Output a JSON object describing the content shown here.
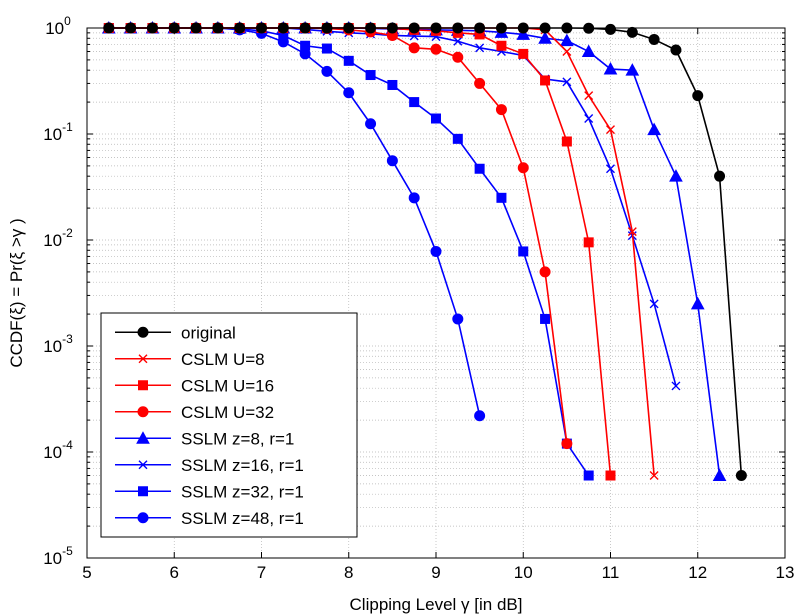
{
  "chart_data": {
    "type": "line",
    "title": "",
    "xlabel": "Clipping Level γ [in dB]",
    "ylabel": "CCDF(ξ) = Pr(ξ >γ )",
    "xlim": [
      5,
      13
    ],
    "ylim": [
      1e-05,
      1
    ],
    "yscale": "log",
    "grid": true,
    "legend_position": "bottom-left",
    "x_ticks": [
      "5",
      "6",
      "7",
      "8",
      "9",
      "10",
      "11",
      "12",
      "13"
    ],
    "y_ticks": [
      {
        "base": "10",
        "exp": "-5"
      },
      {
        "base": "10",
        "exp": "-4"
      },
      {
        "base": "10",
        "exp": "-3"
      },
      {
        "base": "10",
        "exp": "-2"
      },
      {
        "base": "10",
        "exp": "-1"
      },
      {
        "base": "10",
        "exp": "0"
      }
    ],
    "series": [
      {
        "name": "original",
        "color": "#000000",
        "marker": "circle",
        "x": [
          5.25,
          5.5,
          5.75,
          6,
          6.25,
          6.5,
          6.75,
          7,
          7.25,
          7.5,
          7.75,
          8,
          8.25,
          8.5,
          8.75,
          9,
          9.25,
          9.5,
          9.75,
          10,
          10.25,
          10.5,
          10.75,
          11,
          11.25,
          11.5,
          11.75,
          12,
          12.25,
          12.5
        ],
        "y": [
          1,
          1,
          1,
          1,
          1,
          1,
          1,
          1,
          1,
          1,
          1,
          1,
          1,
          1,
          1,
          1,
          1,
          1,
          1,
          1,
          1,
          1,
          0.995,
          0.97,
          0.91,
          0.78,
          0.62,
          0.23,
          0.04,
          6e-05
        ]
      },
      {
        "name": "CSLM U=8",
        "color": "#ff0000",
        "marker": "x",
        "x": [
          5.25,
          5.5,
          5.75,
          6,
          6.25,
          6.5,
          6.75,
          7,
          7.25,
          7.5,
          7.75,
          8,
          8.25,
          8.5,
          8.75,
          9,
          9.25,
          9.5,
          9.75,
          10,
          10.25,
          10.5,
          10.75,
          11,
          11.25,
          11.5
        ],
        "y": [
          1,
          1,
          1,
          1,
          1,
          1,
          1,
          1,
          1,
          1,
          1,
          1,
          1,
          1,
          1,
          1,
          1,
          1,
          1,
          1,
          0.96,
          0.6,
          0.23,
          0.11,
          0.012,
          6e-05
        ]
      },
      {
        "name": "CSLM U=16",
        "color": "#ff0000",
        "marker": "square",
        "x": [
          5.25,
          5.5,
          5.75,
          6,
          6.25,
          6.5,
          6.75,
          7,
          7.25,
          7.5,
          7.75,
          8,
          8.25,
          8.5,
          8.75,
          9,
          9.25,
          9.5,
          9.75,
          10,
          10.25,
          10.5,
          10.75,
          11
        ],
        "y": [
          1,
          1,
          1,
          1,
          1,
          1,
          1,
          1,
          1,
          1,
          1,
          1,
          1,
          0.99,
          0.96,
          0.94,
          0.9,
          0.87,
          0.68,
          0.57,
          0.32,
          0.085,
          0.0095,
          6e-05
        ]
      },
      {
        "name": "CSLM U=32",
        "color": "#ff0000",
        "marker": "circle",
        "x": [
          5.25,
          5.5,
          5.75,
          6,
          6.25,
          6.5,
          6.75,
          7,
          7.25,
          7.5,
          7.75,
          8,
          8.25,
          8.5,
          8.75,
          9,
          9.25,
          9.5,
          9.75,
          10,
          10.25,
          10.5
        ],
        "y": [
          1,
          1,
          1,
          1,
          1,
          1,
          1,
          1,
          1,
          1,
          0.99,
          0.96,
          0.92,
          0.85,
          0.65,
          0.63,
          0.53,
          0.3,
          0.17,
          0.048,
          0.005,
          0.00012
        ]
      },
      {
        "name": "SSLM z=8, r=1",
        "color": "#0000ff",
        "marker": "triangle",
        "x": [
          5.25,
          5.5,
          5.75,
          6,
          6.25,
          6.5,
          6.75,
          7,
          7.25,
          7.5,
          7.75,
          8,
          8.25,
          8.5,
          8.75,
          9,
          9.25,
          9.5,
          9.75,
          10,
          10.25,
          10.5,
          10.75,
          11,
          11.25,
          11.5,
          11.75,
          12,
          12.25
        ],
        "y": [
          1,
          1,
          1,
          1,
          1,
          1,
          1,
          1,
          1,
          1,
          1,
          1,
          0.99,
          0.98,
          0.97,
          0.96,
          0.95,
          0.94,
          0.91,
          0.87,
          0.8,
          0.76,
          0.6,
          0.41,
          0.4,
          0.11,
          0.04,
          0.0025,
          6e-05
        ]
      },
      {
        "name": "SSLM z=16, r=1",
        "color": "#0000ff",
        "marker": "x",
        "x": [
          5.25,
          5.5,
          5.75,
          6,
          6.25,
          6.5,
          6.75,
          7,
          7.25,
          7.5,
          7.75,
          8,
          8.25,
          8.5,
          8.75,
          9,
          9.25,
          9.5,
          9.75,
          10,
          10.25,
          10.5,
          10.75,
          11,
          11.25,
          11.5,
          11.75
        ],
        "y": [
          1,
          1,
          1,
          1,
          1,
          1,
          1,
          1,
          1,
          0.97,
          0.93,
          0.9,
          0.88,
          0.85,
          0.84,
          0.83,
          0.75,
          0.65,
          0.6,
          0.55,
          0.33,
          0.31,
          0.14,
          0.047,
          0.011,
          0.0025,
          0.00042
        ]
      },
      {
        "name": "SSLM z=32, r=1",
        "color": "#0000ff",
        "marker": "square",
        "x": [
          5.25,
          5.5,
          5.75,
          6,
          6.25,
          6.5,
          6.75,
          7,
          7.25,
          7.5,
          7.75,
          8,
          8.25,
          8.5,
          8.75,
          9,
          9.25,
          9.5,
          9.75,
          10,
          10.25,
          10.5,
          10.75
        ],
        "y": [
          1,
          1,
          1,
          1,
          1,
          1,
          0.98,
          0.94,
          0.85,
          0.68,
          0.64,
          0.49,
          0.36,
          0.29,
          0.2,
          0.14,
          0.09,
          0.047,
          0.025,
          0.0078,
          0.0018,
          0.00012,
          6e-05
        ]
      },
      {
        "name": "SSLM z=48, r=1",
        "color": "#0000ff",
        "marker": "circle",
        "x": [
          5.25,
          5.5,
          5.75,
          6,
          6.25,
          6.5,
          6.75,
          7,
          7.25,
          7.5,
          7.75,
          8,
          8.25,
          8.5,
          8.75,
          9,
          9.25,
          9.5
        ],
        "y": [
          1,
          1,
          1,
          1,
          1,
          1,
          0.96,
          0.89,
          0.74,
          0.57,
          0.39,
          0.245,
          0.125,
          0.056,
          0.025,
          0.0078,
          0.0018,
          0.00022
        ]
      }
    ]
  }
}
